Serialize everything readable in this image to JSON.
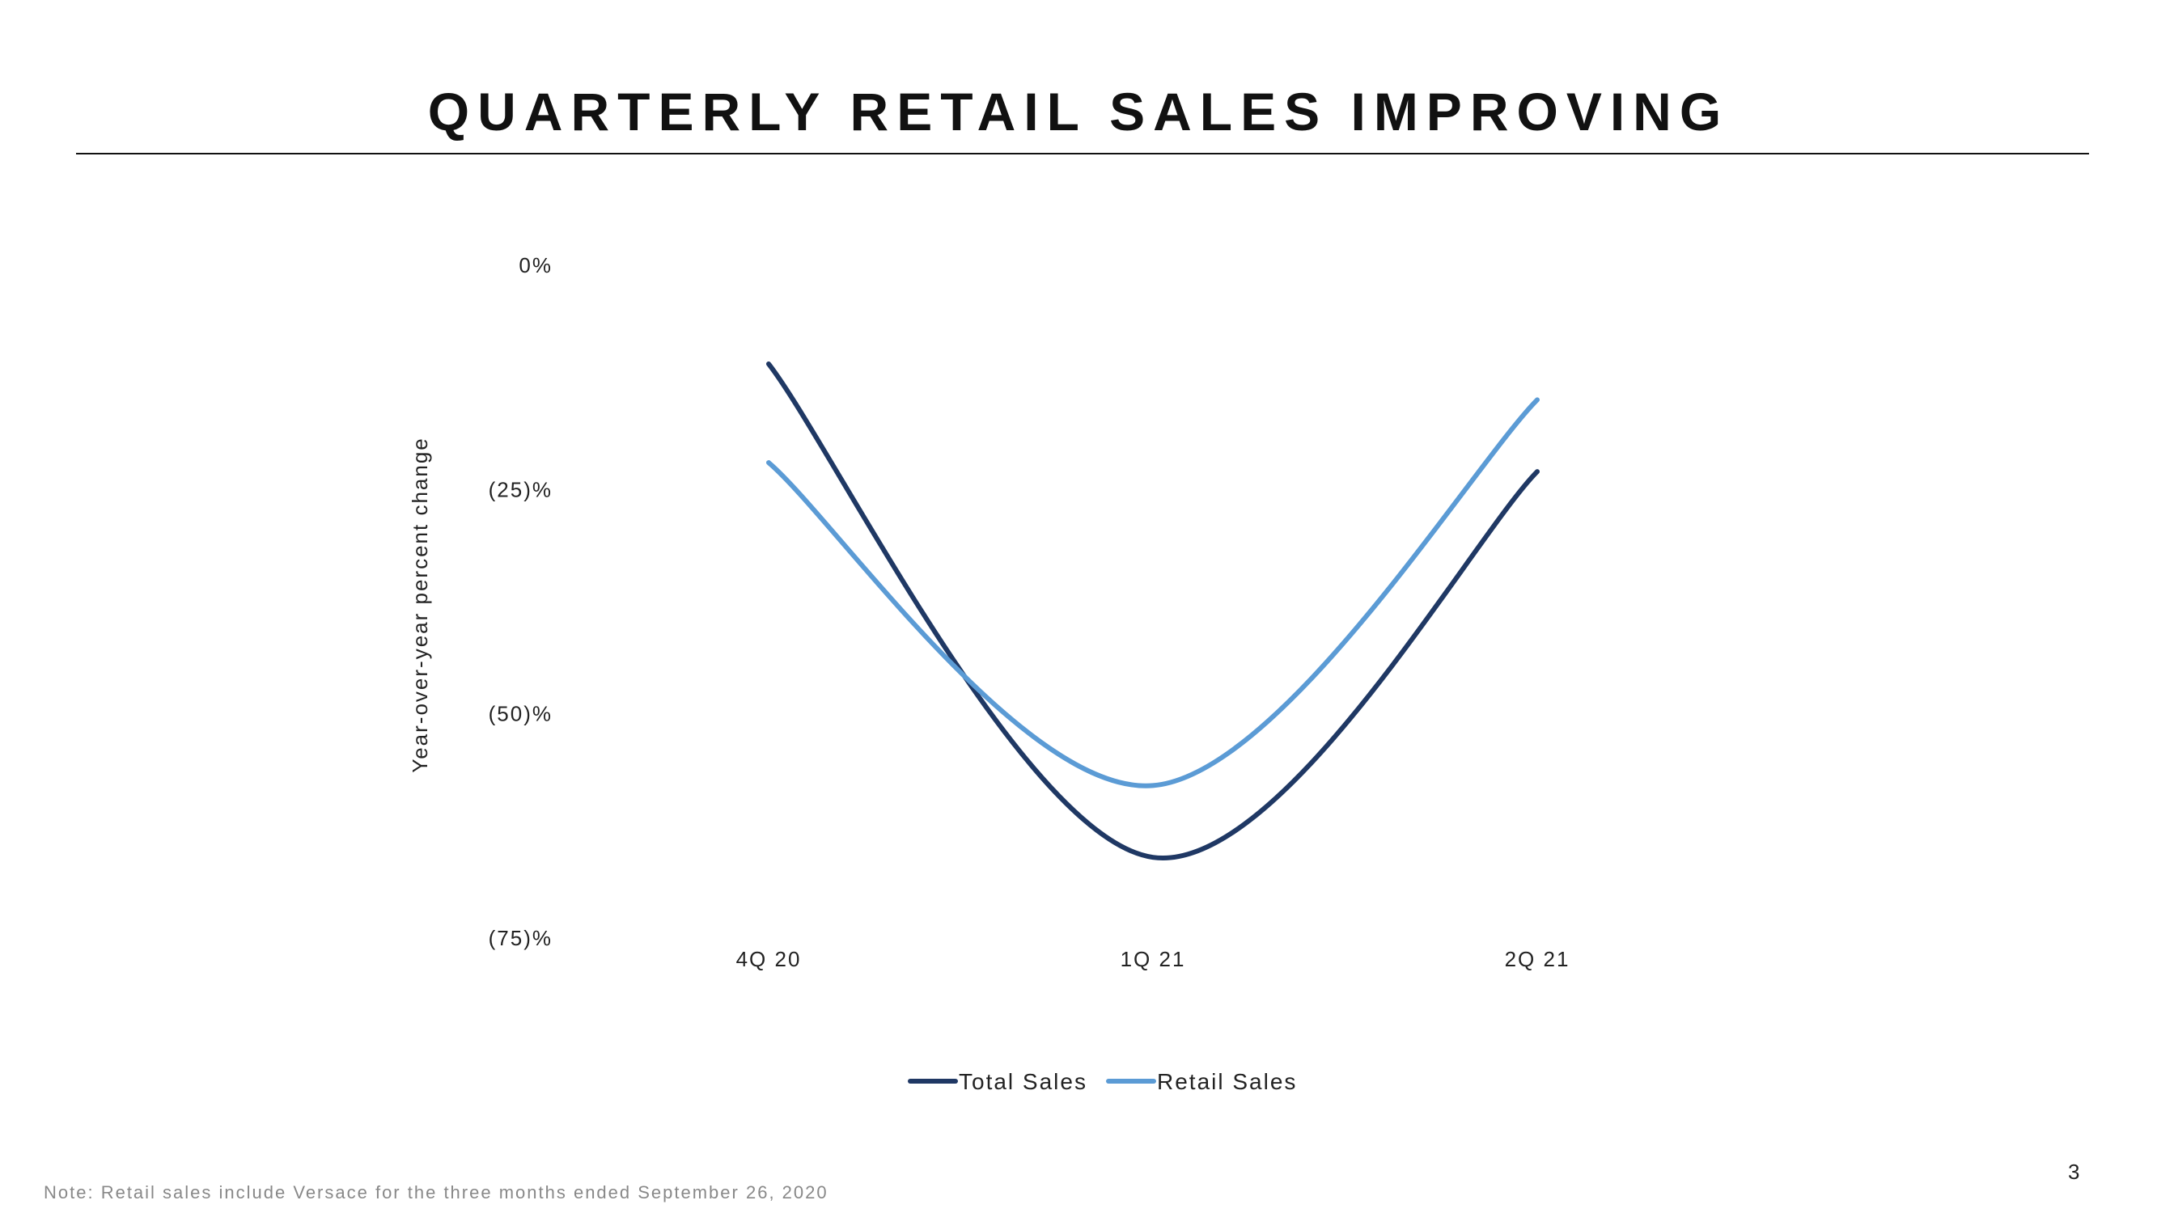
{
  "slide": {
    "title": "QUARTERLY RETAIL SALES IMPROVING",
    "note": "Note:  Retail  sales include  Versace for the three  months  ended September  26, 2020",
    "page_number": "3"
  },
  "chart_data": {
    "type": "line",
    "title": "",
    "xlabel": "",
    "ylabel": "Year-over-year percent change",
    "categories": [
      "4Q20",
      "1Q21",
      "2Q21"
    ],
    "x_tick_labels": [
      "4Q 20",
      "1Q 21",
      "2Q 21"
    ],
    "y_ticks": [
      0,
      -25,
      -50,
      -75
    ],
    "y_tick_labels": [
      "0%",
      "(25)%",
      "(50)%",
      "(75)%"
    ],
    "ylim": [
      -75,
      0
    ],
    "grid": false,
    "smooth": true,
    "legend_position": "bottom",
    "series": [
      {
        "name": "Total Sales",
        "color": "#1f3864",
        "values": [
          -11,
          -66,
          -23
        ]
      },
      {
        "name": "Retail Sales",
        "color": "#5b9bd5",
        "values": [
          -22,
          -58,
          -15
        ]
      }
    ]
  }
}
